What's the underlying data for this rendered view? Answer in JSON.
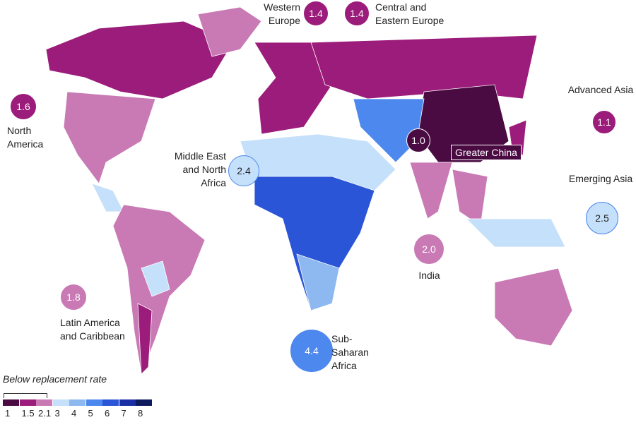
{
  "map": {
    "regions": [
      "North America",
      "Western Europe",
      "Central and Eastern Europe",
      "Advanced Asia",
      "Greater China",
      "Middle East and North Africa",
      "Emerging Asia",
      "India",
      "Latin America and Caribbean",
      "Sub-Saharan Africa"
    ],
    "values": [
      1.6,
      1.4,
      1.4,
      1.1,
      1.0,
      2.4,
      2.5,
      2.0,
      1.8,
      4.4
    ],
    "value_labels": [
      "1.6",
      "1.4",
      "1.4",
      "1.1",
      "1.0",
      "2.4",
      "2.5",
      "2.0",
      "1.8",
      "4.4"
    ],
    "colors": [
      "#9b1c7a",
      "#9b1c7a",
      "#9b1c7a",
      "#9b1c7a",
      "#4a0a42",
      "#c5e0fa",
      "#c5e0fa",
      "#c97ab5",
      "#c97ab5",
      "#4d88ee"
    ],
    "legend": {
      "title": "Below replacement rate",
      "ticks": [
        1,
        1.5,
        2.1,
        3,
        4,
        5,
        6,
        7,
        8
      ],
      "colors": [
        "#4a0a42",
        "#9b1c7a",
        "#c97ab5",
        "#c5e0fa",
        "#8db8f0",
        "#4d88ee",
        "#2a55d6",
        "#1a2fa6",
        "#0e1a5e"
      ]
    }
  }
}
